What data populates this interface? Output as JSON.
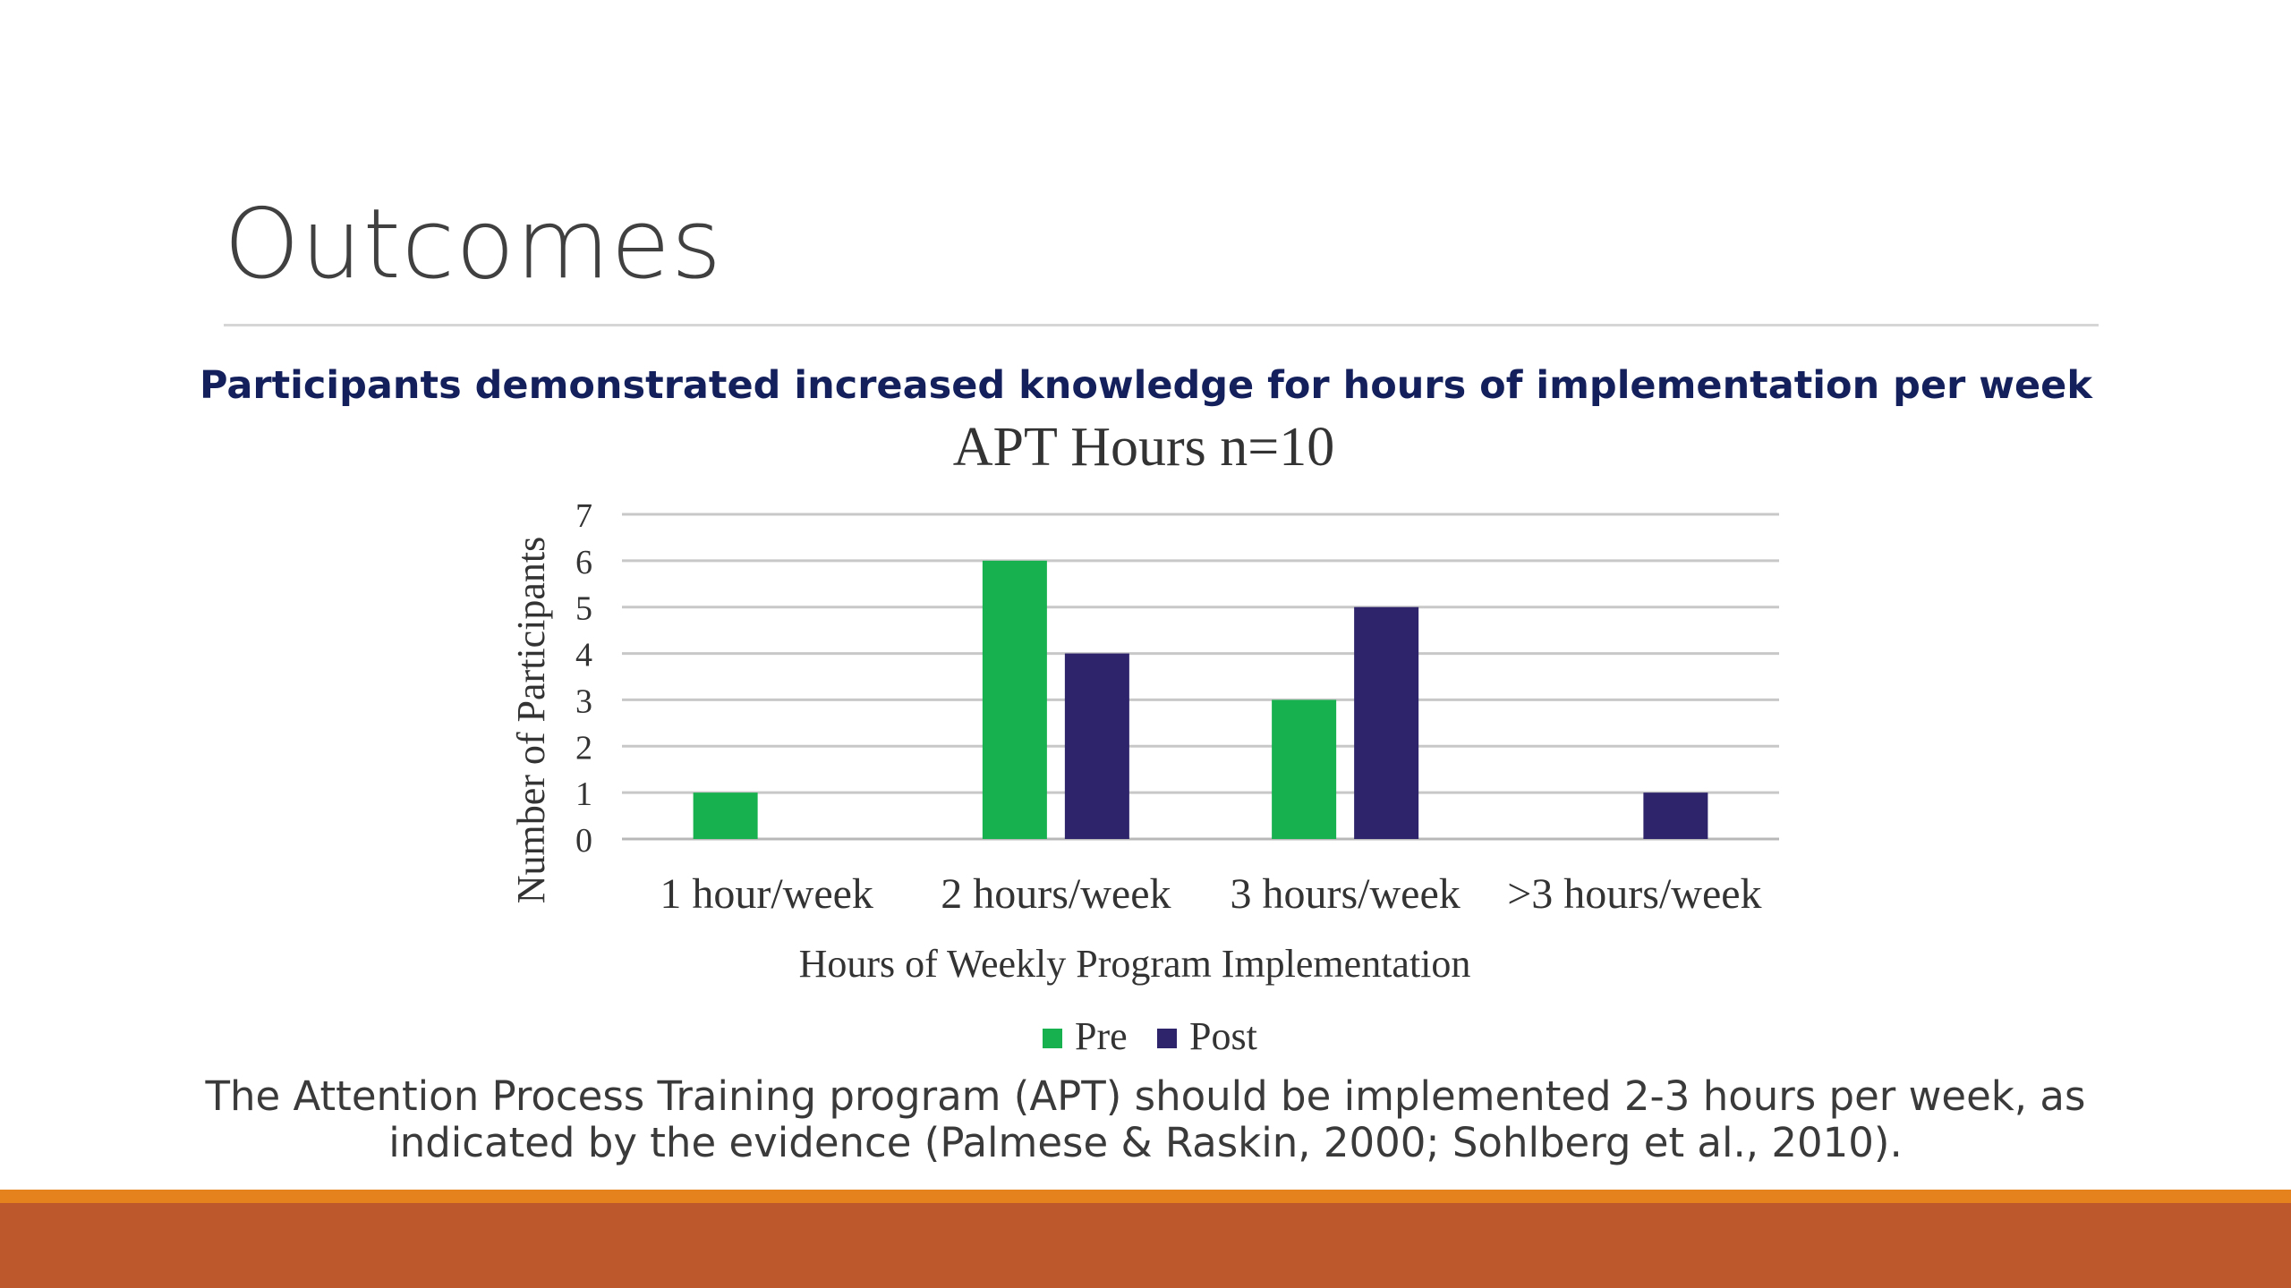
{
  "slide": {
    "title": "Outcomes",
    "subtitle": "Participants demonstrated increased knowledge for hours of implementation per week",
    "footnote_line1": "The Attention Process Training program (APT) should be implemented 2-3 hours per week, as",
    "footnote_line2": "indicated by the evidence (Palmese & Raskin, 2000; Sohlberg et al., 2010)."
  },
  "colors": {
    "pre": "#17b14f",
    "post": "#2e246c",
    "band_top": "#e5821d",
    "band_bottom": "#bc582b",
    "subtitle": "#14205c"
  },
  "chart_data": {
    "type": "bar",
    "title": "APT Hours n=10",
    "xlabel": "Hours of Weekly Program Implementation",
    "ylabel": "Number of Participants",
    "categories": [
      "1 hour/week",
      "2 hours/week",
      "3 hours/week",
      ">3 hours/week"
    ],
    "series": [
      {
        "name": "Pre",
        "values": [
          1,
          6,
          3,
          0
        ]
      },
      {
        "name": "Post",
        "values": [
          0,
          4,
          5,
          1
        ]
      }
    ],
    "ylim": [
      0,
      7
    ],
    "yticks": [
      "0",
      "1",
      "2",
      "3",
      "4",
      "5",
      "6",
      "7"
    ],
    "grid": true,
    "legend": "bottom"
  }
}
